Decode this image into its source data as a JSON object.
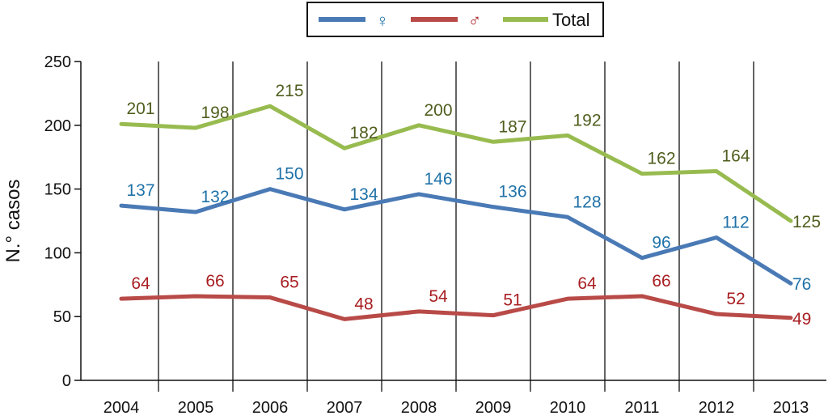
{
  "chart_data": {
    "type": "line",
    "title": "",
    "xlabel": "",
    "ylabel": "N.° casos",
    "ylim": [
      0,
      250
    ],
    "yticks": [
      0,
      50,
      100,
      150,
      200,
      250
    ],
    "categories": [
      "2004",
      "2005",
      "2006",
      "2007",
      "2008",
      "2009",
      "2010",
      "2011",
      "2012",
      "2013"
    ],
    "grid": "vertical lines between years",
    "legend_position": "top-center",
    "series": [
      {
        "name": "♀",
        "color": "#4a7ab5",
        "label_color": "#1f72a8",
        "values": [
          137,
          132,
          150,
          134,
          146,
          136,
          128,
          96,
          112,
          76
        ]
      },
      {
        "name": "♂",
        "color": "#b84a47",
        "label_color": "#a81e22",
        "values": [
          64,
          66,
          65,
          48,
          54,
          51,
          64,
          66,
          52,
          49
        ]
      },
      {
        "name": "Total",
        "color": "#98bb50",
        "label_color": "#4f5e1e",
        "values": [
          201,
          198,
          215,
          182,
          200,
          187,
          192,
          162,
          164,
          125
        ]
      }
    ]
  }
}
